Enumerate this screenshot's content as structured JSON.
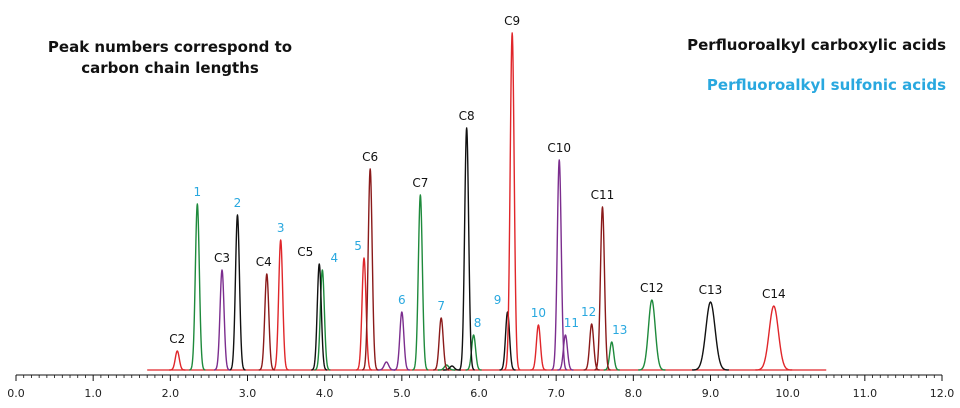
{
  "chart_data": {
    "type": "line",
    "note": [
      "Peak numbers correspond to",
      "carbon chain lengths"
    ],
    "legend": [
      {
        "label": "Perfluoroalkyl carboxylic acids",
        "color": "#111111"
      },
      {
        "label": "Perfluoroalkyl sulfonic acids",
        "color": "#29a8df"
      }
    ],
    "xlim": [
      0,
      12
    ],
    "x_ticks": [
      "0.0",
      "1.0",
      "2.0",
      "3.0",
      "4.0",
      "5.0",
      "6.0",
      "7.0",
      "8.0",
      "9.0",
      "10.0",
      "11.0",
      "12.0"
    ],
    "baseline_range": [
      1.7,
      10.5
    ],
    "colors": {
      "red": "#e0262a",
      "green": "#1e8a3c",
      "black": "#111111",
      "purple": "#7b2d8e",
      "darkred": "#8a1a1a",
      "sulfonic": "#29a8df"
    },
    "carboxylic_peaks": [
      {
        "label": "C2",
        "x": 2.09,
        "height": 19,
        "color": "red"
      },
      {
        "label": "C3",
        "x": 2.67,
        "height": 100,
        "color": "purple"
      },
      {
        "label": "C4",
        "x": 3.25,
        "height": 96,
        "color": "darkred"
      },
      {
        "label": "C5",
        "x": 3.93,
        "height": 106,
        "color": "black"
      },
      {
        "label": "C6",
        "x": 4.59,
        "height": 201,
        "color": "darkred"
      },
      {
        "label": "C7",
        "x": 5.24,
        "height": 175,
        "color": "green"
      },
      {
        "label": "C8",
        "x": 5.84,
        "height": 242,
        "color": "black"
      },
      {
        "label": "C9",
        "x": 6.43,
        "height": 337,
        "color": "red"
      },
      {
        "label": "C10",
        "x": 7.04,
        "height": 210,
        "color": "purple"
      },
      {
        "label": "C11",
        "x": 7.6,
        "height": 163,
        "color": "darkred"
      },
      {
        "label": "C12",
        "x": 8.24,
        "height": 70,
        "color": "green"
      },
      {
        "label": "C13",
        "x": 9.0,
        "height": 68,
        "color": "black"
      },
      {
        "label": "C14",
        "x": 9.82,
        "height": 64,
        "color": "red"
      }
    ],
    "sulfonic_peaks": [
      {
        "label": "1",
        "x": 2.35,
        "height": 166,
        "color": "green"
      },
      {
        "label": "2",
        "x": 2.87,
        "height": 155,
        "color": "black"
      },
      {
        "label": "3",
        "x": 3.43,
        "height": 130,
        "color": "red"
      },
      {
        "label": "4",
        "x": 3.97,
        "height": 100,
        "color": "green"
      },
      {
        "label": "5",
        "x": 4.51,
        "height": 112,
        "color": "red"
      },
      {
        "label": "6",
        "x": 5.0,
        "height": 58,
        "color": "purple"
      },
      {
        "label": "7",
        "x": 5.51,
        "height": 52,
        "color": "darkred"
      },
      {
        "label": "8",
        "x": 5.93,
        "height": 35,
        "color": "green"
      },
      {
        "label": "9",
        "x": 6.37,
        "height": 58,
        "color": "black"
      },
      {
        "label": "10",
        "x": 6.77,
        "height": 45,
        "color": "red"
      },
      {
        "label": "11",
        "x": 7.12,
        "height": 35,
        "color": "purple"
      },
      {
        "label": "12",
        "x": 7.46,
        "height": 46,
        "color": "darkred"
      },
      {
        "label": "13",
        "x": 7.72,
        "height": 28,
        "color": "green"
      }
    ],
    "minor_peaks": [
      {
        "x": 4.8,
        "height": 8,
        "color": "purple"
      },
      {
        "x": 5.58,
        "height": 5,
        "color": "green"
      },
      {
        "x": 5.65,
        "height": 4,
        "color": "black"
      }
    ]
  }
}
